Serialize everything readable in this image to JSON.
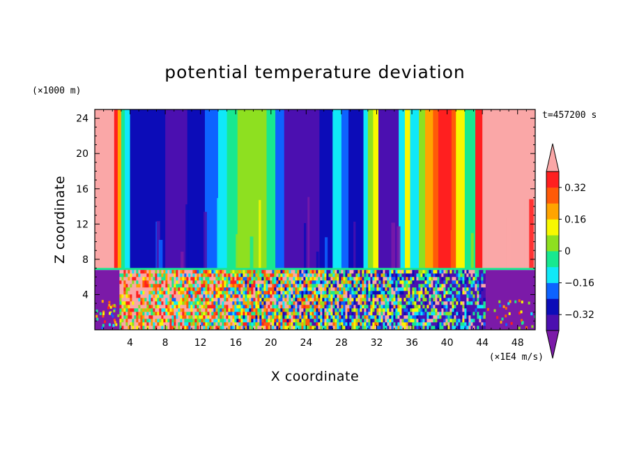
{
  "chart_data": {
    "type": "heatmap",
    "title": "potential temperature deviation",
    "xlabel": "X coordinate",
    "ylabel": "Z coordinate",
    "x_unit": "(×1E4 m/s)",
    "y_unit": "(×1000 m)",
    "time_label": "t=457200 s",
    "xlim": [
      0,
      50
    ],
    "ylim": [
      0,
      25
    ],
    "x_ticks": [
      4,
      8,
      12,
      16,
      20,
      24,
      28,
      32,
      36,
      40,
      44,
      48
    ],
    "y_ticks": [
      4,
      8,
      12,
      16,
      20,
      24
    ],
    "x_tick_labels": [
      "4",
      "8",
      "12",
      "16",
      "20",
      "24",
      "28",
      "32",
      "36",
      "40",
      "44",
      "48"
    ],
    "y_tick_labels": [
      "4",
      "8",
      "12",
      "16",
      "20",
      "24"
    ],
    "colorbar": {
      "levels": [
        -0.4,
        -0.32,
        -0.24,
        -0.16,
        -0.08,
        0,
        0.08,
        0.16,
        0.24,
        0.32,
        0.4
      ],
      "labels": [
        "0.32",
        "0.16",
        "0",
        "−0.16",
        "−0.32"
      ],
      "label_values": [
        0.32,
        0.16,
        0,
        -0.16,
        -0.32
      ],
      "colors": [
        "#7b1aa8",
        "#4b0fb0",
        "#0c0cb8",
        "#0d63ff",
        "#10e8f8",
        "#18e890",
        "#8ee020",
        "#f8f800",
        "#ffa400",
        "#ff5a08",
        "#ff1f1f",
        "#faa7a7"
      ]
    },
    "interface_height": 6.9,
    "upper_columns": [
      {
        "x0": 0,
        "x1": 2.2,
        "level": 11
      },
      {
        "x0": 2.2,
        "x1": 2.6,
        "level": 10
      },
      {
        "x0": 2.6,
        "x1": 3.0,
        "level": 8
      },
      {
        "x0": 3.0,
        "x1": 3.4,
        "level": 5
      },
      {
        "x0": 3.4,
        "x1": 4.0,
        "level": 4
      },
      {
        "x0": 4.0,
        "x1": 8.0,
        "level": 2
      },
      {
        "x0": 8.0,
        "x1": 10.5,
        "level": 1
      },
      {
        "x0": 10.5,
        "x1": 12.5,
        "level": 2
      },
      {
        "x0": 12.5,
        "x1": 14.0,
        "level": 3
      },
      {
        "x0": 14.0,
        "x1": 15.0,
        "level": 4
      },
      {
        "x0": 15.0,
        "x1": 16.2,
        "level": 5
      },
      {
        "x0": 16.2,
        "x1": 19.5,
        "level": 6
      },
      {
        "x0": 19.5,
        "x1": 20.5,
        "level": 5
      },
      {
        "x0": 20.5,
        "x1": 21.5,
        "level": 3
      },
      {
        "x0": 21.5,
        "x1": 25.5,
        "level": 1
      },
      {
        "x0": 25.5,
        "x1": 27.0,
        "level": 2
      },
      {
        "x0": 27.0,
        "x1": 28.0,
        "level": 4
      },
      {
        "x0": 28.0,
        "x1": 28.8,
        "level": 3
      },
      {
        "x0": 28.8,
        "x1": 30.5,
        "level": 2
      },
      {
        "x0": 30.5,
        "x1": 31.0,
        "level": 4
      },
      {
        "x0": 31.0,
        "x1": 31.6,
        "level": 6
      },
      {
        "x0": 31.6,
        "x1": 32.2,
        "level": 7
      },
      {
        "x0": 32.2,
        "x1": 34.5,
        "level": 1
      },
      {
        "x0": 34.5,
        "x1": 35.2,
        "level": 4
      },
      {
        "x0": 35.2,
        "x1": 35.8,
        "level": 7
      },
      {
        "x0": 35.8,
        "x1": 36.8,
        "level": 4
      },
      {
        "x0": 36.8,
        "x1": 37.5,
        "level": 6
      },
      {
        "x0": 37.5,
        "x1": 38.4,
        "level": 8
      },
      {
        "x0": 38.4,
        "x1": 39.0,
        "level": 9
      },
      {
        "x0": 39.0,
        "x1": 40.5,
        "level": 10
      },
      {
        "x0": 40.5,
        "x1": 41.0,
        "level": 9
      },
      {
        "x0": 41.0,
        "x1": 42.0,
        "level": 7
      },
      {
        "x0": 42.0,
        "x1": 43.2,
        "level": 5
      },
      {
        "x0": 43.2,
        "x1": 44.0,
        "level": 10
      },
      {
        "x0": 44.0,
        "x1": 50,
        "level": 11
      }
    ],
    "lower_layer": {
      "noise_x0": 2.8,
      "noise_x1": 44.2,
      "background_level": 0
    }
  }
}
